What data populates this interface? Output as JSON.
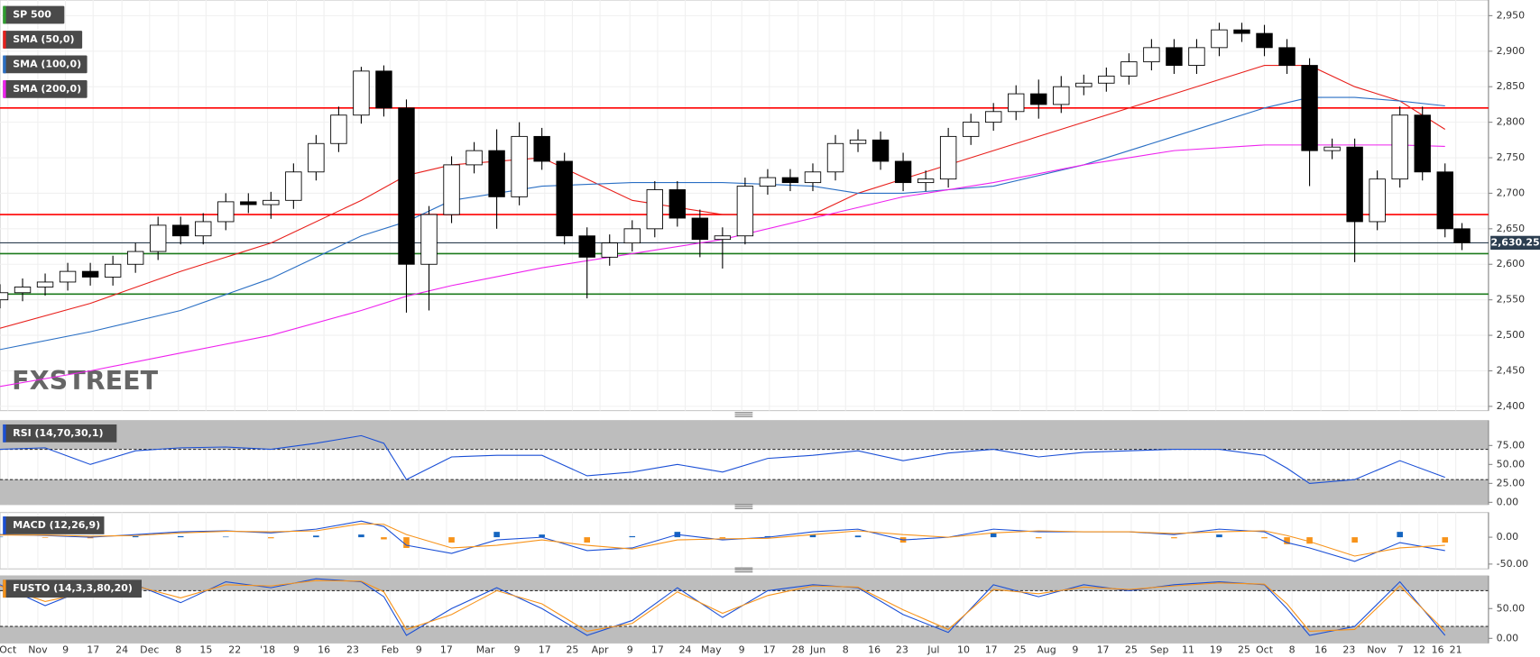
{
  "chart_data": [
    {
      "type": "candlestick",
      "name": "SP 500",
      "name_color": "#2e9e2e",
      "up_color": "#ffffff",
      "down_color": "#000000",
      "x": [
        0,
        4,
        8,
        12,
        16,
        20,
        24,
        28,
        32,
        36,
        40,
        44,
        48,
        52,
        56,
        60,
        64,
        68,
        72,
        76,
        80,
        84,
        88,
        92,
        96,
        100,
        104,
        108,
        112,
        116,
        120,
        124,
        128,
        132,
        136,
        140,
        144,
        148,
        152,
        156,
        160,
        164,
        168,
        172,
        176,
        180,
        184,
        188,
        192,
        196,
        200,
        204,
        208,
        212,
        216,
        220,
        224,
        228,
        232,
        236,
        240,
        244,
        248,
        252,
        256,
        259
      ],
      "open": [
        2550,
        2560,
        2568,
        2575,
        2590,
        2582,
        2600,
        2618,
        2655,
        2640,
        2660,
        2688,
        2684,
        2690,
        2730,
        2770,
        2810,
        2872,
        2820,
        2600,
        2670,
        2740,
        2760,
        2695,
        2780,
        2745,
        2640,
        2610,
        2630,
        2650,
        2705,
        2665,
        2635,
        2640,
        2710,
        2722,
        2715,
        2730,
        2770,
        2775,
        2745,
        2715,
        2720,
        2780,
        2800,
        2815,
        2840,
        2825,
        2850,
        2855,
        2865,
        2885,
        2905,
        2880,
        2905,
        2930,
        2925,
        2905,
        2880,
        2760,
        2765,
        2660,
        2720,
        2810,
        2730,
        2650
      ],
      "high": [
        2572,
        2580,
        2587,
        2602,
        2602,
        2612,
        2630,
        2667,
        2667,
        2672,
        2700,
        2700,
        2702,
        2742,
        2782,
        2822,
        2878,
        2880,
        2832,
        2682,
        2752,
        2772,
        2790,
        2800,
        2792,
        2757,
        2652,
        2642,
        2662,
        2717,
        2717,
        2677,
        2652,
        2722,
        2734,
        2734,
        2742,
        2782,
        2790,
        2787,
        2757,
        2732,
        2792,
        2812,
        2827,
        2852,
        2860,
        2865,
        2867,
        2877,
        2897,
        2917,
        2917,
        2917,
        2940,
        2940,
        2937,
        2917,
        2890,
        2777,
        2777,
        2732,
        2822,
        2822,
        2742,
        2658
      ],
      "low": [
        2538,
        2548,
        2556,
        2563,
        2570,
        2570,
        2588,
        2606,
        2628,
        2628,
        2648,
        2672,
        2664,
        2678,
        2718,
        2758,
        2798,
        2808,
        2532,
        2535,
        2658,
        2728,
        2650,
        2683,
        2733,
        2628,
        2552,
        2598,
        2618,
        2638,
        2653,
        2610,
        2594,
        2628,
        2698,
        2703,
        2703,
        2718,
        2758,
        2733,
        2703,
        2703,
        2708,
        2768,
        2788,
        2803,
        2805,
        2813,
        2838,
        2843,
        2853,
        2873,
        2868,
        2868,
        2893,
        2913,
        2893,
        2868,
        2710,
        2748,
        2603,
        2648,
        2708,
        2718,
        2638,
        2620
      ],
      "close": [
        2560,
        2568,
        2575,
        2590,
        2582,
        2600,
        2618,
        2655,
        2640,
        2660,
        2688,
        2684,
        2690,
        2730,
        2770,
        2810,
        2872,
        2820,
        2600,
        2670,
        2740,
        2760,
        2695,
        2780,
        2745,
        2640,
        2610,
        2630,
        2650,
        2705,
        2665,
        2635,
        2640,
        2710,
        2722,
        2715,
        2730,
        2770,
        2775,
        2745,
        2715,
        2720,
        2780,
        2800,
        2815,
        2840,
        2825,
        2850,
        2855,
        2865,
        2885,
        2905,
        2880,
        2905,
        2930,
        2925,
        2905,
        2880,
        2760,
        2765,
        2660,
        2720,
        2810,
        2730,
        2650,
        2630.25
      ],
      "series": [
        {
          "name": "SMA (50,0)",
          "color": "#e8201c",
          "x": [
            0,
            16,
            32,
            48,
            64,
            72,
            80,
            96,
            112,
            128,
            144,
            152,
            160,
            176,
            192,
            208,
            224,
            232,
            240,
            248,
            256
          ],
          "values": [
            2510,
            2545,
            2590,
            2630,
            2690,
            2725,
            2740,
            2750,
            2690,
            2670,
            2670,
            2700,
            2720,
            2760,
            2800,
            2840,
            2880,
            2880,
            2850,
            2830,
            2790
          ]
        },
        {
          "name": "SMA (100,0)",
          "color": "#2a6fc4",
          "x": [
            0,
            16,
            32,
            48,
            64,
            72,
            80,
            96,
            112,
            128,
            144,
            152,
            160,
            176,
            192,
            208,
            224,
            232,
            240,
            248,
            256
          ],
          "values": [
            2480,
            2505,
            2535,
            2580,
            2640,
            2660,
            2690,
            2710,
            2715,
            2715,
            2710,
            2700,
            2700,
            2710,
            2740,
            2780,
            2820,
            2835,
            2835,
            2830,
            2823
          ]
        },
        {
          "name": "SMA (200,0)",
          "color": "#ee22ee",
          "x": [
            0,
            16,
            32,
            48,
            64,
            72,
            80,
            96,
            112,
            128,
            144,
            152,
            160,
            176,
            192,
            208,
            224,
            232,
            240,
            248,
            256
          ],
          "values": [
            2428,
            2450,
            2475,
            2500,
            2535,
            2555,
            2570,
            2595,
            2615,
            2635,
            2665,
            2680,
            2695,
            2715,
            2740,
            2760,
            2768,
            2768,
            2768,
            2768,
            2766
          ]
        }
      ],
      "levels": [
        {
          "value": 2820,
          "color": "#ff0000"
        },
        {
          "value": 2670,
          "color": "#ff0000"
        },
        {
          "value": 2615,
          "color": "#1b7a1b"
        },
        {
          "value": 2558,
          "color": "#1b7a1b"
        }
      ],
      "last": {
        "value": 2630.25,
        "label": "2,630.25",
        "color": "#2c3e50"
      },
      "ylim": [
        2394,
        2972
      ],
      "yticks": [
        {
          "value": 2400,
          "label": "2,400"
        },
        {
          "value": 2450,
          "label": "2,450"
        },
        {
          "value": 2500,
          "label": "2,500"
        },
        {
          "value": 2550,
          "label": "2,550"
        },
        {
          "value": 2600,
          "label": "2,600"
        },
        {
          "value": 2650,
          "label": "2,650"
        },
        {
          "value": 2700,
          "label": "2,700"
        },
        {
          "value": 2750,
          "label": "2,750"
        },
        {
          "value": 2800,
          "label": "2,800"
        },
        {
          "value": 2850,
          "label": "2,850"
        },
        {
          "value": 2900,
          "label": "2,900"
        },
        {
          "value": 2950,
          "label": "2,950"
        }
      ],
      "xlim": [
        0,
        263.7
      ],
      "xticks": [
        {
          "value": 1.4,
          "label": "Oct"
        },
        {
          "value": 6.7,
          "label": "Nov"
        },
        {
          "value": 11.6,
          "label": "9"
        },
        {
          "value": 16.5,
          "label": "17"
        },
        {
          "value": 21.6,
          "label": "24"
        },
        {
          "value": 26.5,
          "label": "Dec"
        },
        {
          "value": 31.6,
          "label": "8"
        },
        {
          "value": 36.5,
          "label": "15"
        },
        {
          "value": 41.6,
          "label": "22"
        },
        {
          "value": 47.4,
          "label": "'18"
        },
        {
          "value": 52.5,
          "label": "9"
        },
        {
          "value": 57.4,
          "label": "16"
        },
        {
          "value": 62.5,
          "label": "23"
        },
        {
          "value": 69.1,
          "label": "Feb"
        },
        {
          "value": 74.2,
          "label": "9"
        },
        {
          "value": 79.1,
          "label": "17"
        },
        {
          "value": 86,
          "label": "Mar"
        },
        {
          "value": 91.6,
          "label": "9"
        },
        {
          "value": 96.5,
          "label": "17"
        },
        {
          "value": 101.4,
          "label": "25"
        },
        {
          "value": 106.3,
          "label": "Apr"
        },
        {
          "value": 111.6,
          "label": "9"
        },
        {
          "value": 116.5,
          "label": "17"
        },
        {
          "value": 121.4,
          "label": "24"
        },
        {
          "value": 126,
          "label": "May"
        },
        {
          "value": 131.4,
          "label": "9"
        },
        {
          "value": 136.3,
          "label": "17"
        },
        {
          "value": 141.4,
          "label": "28"
        },
        {
          "value": 144.9,
          "label": "Jun"
        },
        {
          "value": 149.8,
          "label": "8"
        },
        {
          "value": 154.9,
          "label": "16"
        },
        {
          "value": 159.8,
          "label": "23"
        },
        {
          "value": 165.4,
          "label": "Jul"
        },
        {
          "value": 170.7,
          "label": "10"
        },
        {
          "value": 175.6,
          "label": "17"
        },
        {
          "value": 180.7,
          "label": "25"
        },
        {
          "value": 185.4,
          "label": "Aug"
        },
        {
          "value": 190.5,
          "label": "9"
        },
        {
          "value": 195.4,
          "label": "17"
        },
        {
          "value": 200.4,
          "label": "25"
        },
        {
          "value": 205.4,
          "label": "Sep"
        },
        {
          "value": 210.5,
          "label": "11"
        },
        {
          "value": 215.4,
          "label": "19"
        },
        {
          "value": 220.4,
          "label": "25"
        },
        {
          "value": 224,
          "label": "Oct"
        },
        {
          "value": 228.9,
          "label": "8"
        },
        {
          "value": 234,
          "label": "16"
        },
        {
          "value": 239,
          "label": "23"
        },
        {
          "value": 243.9,
          "label": "Nov"
        },
        {
          "value": 248.1,
          "label": "7"
        },
        {
          "value": 251.4,
          "label": "12"
        },
        {
          "value": 254.7,
          "label": "16"
        },
        {
          "value": 257.9,
          "label": "21"
        }
      ],
      "grid": true,
      "watermark": "FXSTREET"
    },
    {
      "type": "line",
      "title": "RSI (14,70,30,1)",
      "title_color": "#1a4fd6",
      "x": [
        0,
        8,
        16,
        24,
        32,
        40,
        48,
        56,
        64,
        68,
        72,
        80,
        88,
        96,
        104,
        112,
        120,
        128,
        136,
        144,
        152,
        160,
        168,
        176,
        184,
        192,
        200,
        208,
        216,
        224,
        228,
        232,
        240,
        248,
        256
      ],
      "series": [
        {
          "color": "#1a4fd6",
          "values": [
            70,
            72,
            50,
            68,
            72,
            73,
            70,
            78,
            88,
            78,
            30,
            60,
            62,
            62,
            35,
            40,
            50,
            40,
            58,
            62,
            68,
            55,
            65,
            70,
            60,
            66,
            68,
            70,
            70,
            62,
            45,
            25,
            30,
            55,
            33
          ]
        }
      ],
      "bands": [
        30,
        70
      ],
      "ylim": [
        -3,
        108
      ],
      "yticks": [
        {
          "value": 0,
          "label": "0.00"
        },
        {
          "value": 25,
          "label": "25.00"
        },
        {
          "value": 50,
          "label": "50.00"
        },
        {
          "value": 75,
          "label": "75.00"
        }
      ]
    },
    {
      "type": "macd",
      "title": "MACD (12,26,9)",
      "title_color": "#1a4fd6",
      "x": [
        0,
        8,
        16,
        24,
        32,
        40,
        48,
        56,
        64,
        68,
        72,
        80,
        88,
        96,
        104,
        112,
        120,
        128,
        136,
        144,
        152,
        160,
        168,
        176,
        184,
        192,
        200,
        208,
        216,
        224,
        228,
        232,
        240,
        248,
        256
      ],
      "series": [
        {
          "color": "#1a4fd6",
          "values": [
            5,
            3,
            0,
            5,
            10,
            12,
            8,
            15,
            30,
            20,
            -15,
            -30,
            -5,
            0,
            -25,
            -20,
            5,
            -5,
            0,
            10,
            15,
            -5,
            0,
            15,
            10,
            10,
            10,
            5,
            15,
            10,
            -10,
            -20,
            -45,
            -10,
            -25
          ]
        },
        {
          "color": "#f7931a",
          "values": [
            4,
            4,
            2,
            3,
            8,
            11,
            10,
            12,
            25,
            24,
            5,
            -20,
            -15,
            -5,
            -15,
            -22,
            -5,
            -3,
            -2,
            5,
            12,
            5,
            0,
            8,
            12,
            10,
            10,
            7,
            10,
            12,
            3,
            -8,
            -35,
            -20,
            -15
          ]
        }
      ],
      "histogram": {
        "values": [
          1,
          -1,
          -2,
          2,
          2,
          1,
          -2,
          3,
          5,
          -4,
          -20,
          -10,
          10,
          5,
          -10,
          2,
          10,
          -2,
          2,
          5,
          3,
          -10,
          0,
          7,
          -2,
          0,
          0,
          -2,
          5,
          -2,
          -13,
          -12,
          -10,
          10,
          -10
        ],
        "color": "#1565c0",
        "negative_color": "#f7931a"
      },
      "ylim": [
        -59,
        46
      ],
      "yticks": [
        {
          "value": 0,
          "label": "0.00"
        },
        {
          "value": -50,
          "label": "-50.00"
        }
      ]
    },
    {
      "type": "line",
      "title": "FUSTO (14,3,3,80,20)",
      "title_color": "#f7931a",
      "x": [
        0,
        8,
        16,
        24,
        32,
        40,
        48,
        56,
        64,
        68,
        72,
        80,
        88,
        96,
        104,
        112,
        120,
        128,
        136,
        144,
        152,
        160,
        168,
        176,
        184,
        192,
        200,
        208,
        216,
        224,
        228,
        232,
        240,
        248,
        256
      ],
      "series": [
        {
          "color": "#1a4fd6",
          "values": [
            90,
            55,
            85,
            90,
            60,
            95,
            85,
            100,
            95,
            70,
            5,
            50,
            85,
            50,
            5,
            30,
            85,
            35,
            80,
            90,
            85,
            40,
            10,
            90,
            70,
            90,
            80,
            90,
            95,
            90,
            50,
            5,
            20,
            95,
            5
          ]
        },
        {
          "color": "#f7931a",
          "values": [
            88,
            62,
            78,
            88,
            68,
            90,
            88,
            97,
            96,
            78,
            15,
            40,
            80,
            58,
            12,
            25,
            78,
            42,
            72,
            88,
            86,
            48,
            15,
            82,
            75,
            86,
            82,
            88,
            93,
            91,
            58,
            12,
            15,
            88,
            12
          ]
        }
      ],
      "bands": [
        20,
        80
      ],
      "ylim": [
        -8,
        105
      ],
      "yticks": [
        {
          "value": 0,
          "label": "0.00"
        },
        {
          "value": 50,
          "label": "50.00"
        }
      ]
    }
  ]
}
